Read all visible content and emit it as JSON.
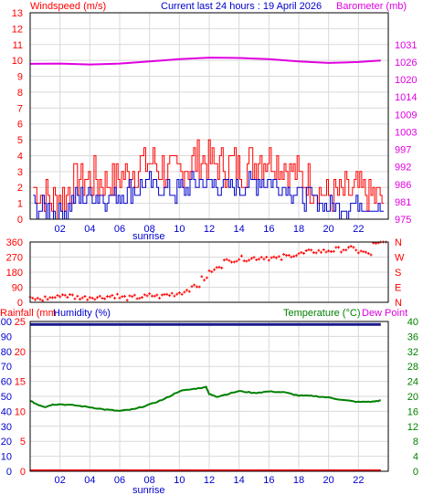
{
  "header": {
    "wind_label": "Windspeed (m/s)",
    "title": "Current last 24 hours : 19 April 2026",
    "baro_label": "Barometer (mb)",
    "rain_label": "Rainfall (mm",
    "hum_label": "Humidity (%)",
    "temp_label": "Temperature (°C)",
    "dew_label": "Dew Point",
    "sunrise_label": "sunrise"
  },
  "colors": {
    "grid": "#d9d9d9",
    "axis": "#000000",
    "red": "#ff0000",
    "blue": "#0000cc",
    "magenta": "#e000e0",
    "green": "#008000",
    "darkblue": "#1a1a8c"
  },
  "chart_data": [
    {
      "type": "line",
      "panel": "wind-barometer",
      "x_ticks": [
        "02",
        "04",
        "06",
        "08",
        "10",
        "12",
        "14",
        "16",
        "18",
        "20",
        "22"
      ],
      "xlim": [
        0,
        24
      ],
      "y_left_ticks": [
        0,
        1,
        2,
        3,
        4,
        5,
        6,
        7,
        8,
        9,
        10,
        11,
        12,
        13
      ],
      "y_left_lim": [
        0,
        13
      ],
      "y_right_ticks": [
        975,
        981,
        986,
        992,
        997,
        1003,
        1009,
        1014,
        1020,
        1026,
        1031
      ],
      "series": [
        {
          "key": "gust",
          "color": "red",
          "base": [
            2.0,
            1.6,
            1.3,
            1.2,
            1.5,
            2.4,
            2.5,
            2.6,
            2.4,
            2.3,
            2.4,
            2.6,
            3.0,
            3.4,
            3.6,
            3.5,
            3.1,
            2.8,
            3.0,
            3.4,
            3.7,
            3.8,
            3.6,
            3.3,
            3.5,
            3.4,
            3.3,
            3.6,
            3.9,
            3.8,
            3.5,
            3.3,
            2.9,
            2.6,
            2.3,
            2.0,
            1.6,
            1.4,
            1.5,
            1.6,
            1.9,
            1.6,
            1.4,
            1.3
          ]
        },
        {
          "key": "average",
          "color": "blue",
          "base": [
            0.9,
            0.6,
            0.5,
            0.5,
            0.6,
            1.2,
            1.4,
            1.5,
            1.4,
            1.4,
            1.4,
            1.6,
            1.8,
            2.0,
            2.2,
            2.1,
            1.8,
            1.6,
            1.8,
            2.1,
            2.3,
            2.3,
            2.2,
            2.0,
            2.1,
            2.1,
            2.0,
            2.2,
            2.4,
            2.3,
            2.1,
            2.0,
            1.7,
            1.5,
            1.3,
            1.1,
            0.9,
            0.8,
            0.8,
            0.9,
            1.1,
            0.9,
            0.8,
            0.7
          ]
        },
        {
          "key": "barometer",
          "color": "magenta",
          "x": [
            0,
            2,
            4,
            6,
            8,
            10,
            12,
            14,
            16,
            18,
            20,
            22,
            23.5
          ],
          "values": [
            1024.8,
            1024.9,
            1024.6,
            1024.9,
            1025.6,
            1026.3,
            1026.8,
            1026.7,
            1026.3,
            1025.6,
            1025.1,
            1025.4,
            1025.9
          ]
        }
      ]
    },
    {
      "type": "scatter",
      "panel": "wind-direction",
      "y_left_ticks": [
        0,
        90,
        180,
        270,
        360
      ],
      "y_right_ticks": [
        "N",
        "E",
        "S",
        "W",
        "N"
      ],
      "ylim": [
        0,
        360
      ],
      "series": [
        {
          "key": "direction",
          "color": "red",
          "x": [
            0,
            0.5,
            1,
            1.5,
            2,
            2.5,
            3,
            3.5,
            4,
            4.5,
            5,
            5.5,
            6,
            6.5,
            7,
            7.5,
            8,
            8.5,
            9,
            9.5,
            10,
            10.5,
            11,
            11.5,
            12,
            12.5,
            13,
            13.5,
            14,
            14.5,
            15,
            15.5,
            16,
            16.5,
            17,
            17.5,
            18,
            18.5,
            19,
            19.5,
            20,
            20.5,
            21,
            21.5,
            22,
            22.5,
            23,
            23.5
          ],
          "values": [
            20,
            18,
            25,
            30,
            45,
            38,
            30,
            28,
            32,
            30,
            35,
            40,
            28,
            25,
            30,
            33,
            40,
            35,
            45,
            50,
            60,
            80,
            100,
            140,
            185,
            220,
            245,
            255,
            262,
            260,
            265,
            270,
            265,
            260,
            275,
            285,
            290,
            300,
            305,
            305,
            310,
            315,
            318,
            320,
            300,
            290,
            345,
            360
          ]
        }
      ]
    },
    {
      "type": "line",
      "panel": "rain-humidity-temperature",
      "y_left_ticks": [
        0,
        10,
        20,
        30,
        40,
        50,
        60,
        70,
        80,
        90,
        100
      ],
      "y_rain_ticks": [
        0,
        5,
        10,
        15,
        20,
        25
      ],
      "y_right_ticks": [
        0,
        4,
        8,
        12,
        16,
        20,
        24,
        28,
        32,
        36,
        40
      ],
      "ylim": [
        0,
        100
      ],
      "series": [
        {
          "key": "temperature",
          "color": "green",
          "x": [
            0,
            0.5,
            1,
            1.5,
            2,
            3,
            4,
            5,
            6,
            7,
            8,
            9,
            10,
            11,
            11.8,
            12,
            12.5,
            13,
            14,
            15,
            16,
            17,
            18,
            19,
            20,
            21,
            22,
            23,
            23.5
          ],
          "values": [
            18.8,
            17.8,
            17.2,
            17.8,
            17.9,
            17.6,
            17.1,
            16.5,
            16.1,
            16.6,
            17.8,
            19.3,
            21.4,
            22.0,
            22.5,
            20.6,
            19.9,
            20.4,
            21.4,
            20.9,
            21.3,
            21.1,
            20.2,
            20.1,
            19.7,
            19.0,
            18.5,
            18.6,
            18.9
          ]
        },
        {
          "key": "humidity",
          "color": "darkblue",
          "x": [
            0,
            23.5
          ],
          "values": [
            98,
            98
          ]
        },
        {
          "key": "rainfall",
          "color": "red",
          "x": [
            0,
            23.5
          ],
          "values": [
            0,
            0
          ]
        }
      ]
    }
  ]
}
